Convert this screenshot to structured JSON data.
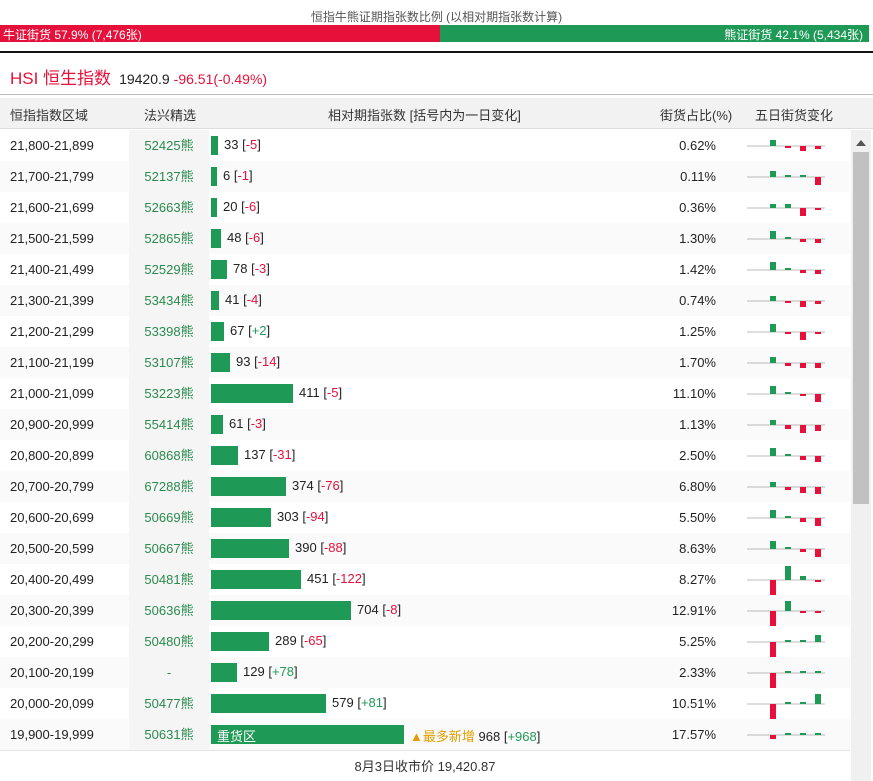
{
  "header": {
    "caption": "恒指牛熊证期指张数比例 (以相对期指张数计算)",
    "bull_label": "牛证街货 57.9% (7,476张)",
    "bear_label": "熊证街货 42.1% (5,434张)",
    "bull_ratio": 0.579,
    "bull_color": "#e5113a",
    "bear_color": "#1f9a56"
  },
  "index": {
    "name": "HSI 恒生指数",
    "price": "19420.9",
    "change": "-96.51(-0.49%)"
  },
  "columns": {
    "range": "恒指指数区域",
    "pick": "法兴精选",
    "contracts": "相对期指张数 [括号内为一日变化]",
    "share": "街货占比(%)",
    "trend": "五日街货变化"
  },
  "rows": [
    {
      "range": "21,800-21,899",
      "pick": "52425熊",
      "count": 33,
      "count_text": "33",
      "change_text": "-5",
      "change": -5,
      "pct": "0.62%",
      "trend": [
        6,
        -2,
        -5,
        -3,
        -1
      ]
    },
    {
      "range": "21,700-21,799",
      "pick": "52137熊",
      "count": 6,
      "count_text": "6",
      "change_text": "-1",
      "change": -1,
      "pct": "0.11%",
      "trend": [
        6,
        0,
        0,
        -8,
        0
      ]
    },
    {
      "range": "21,600-21,699",
      "pick": "52663熊",
      "count": 20,
      "count_text": "20",
      "change_text": "-6",
      "change": -6,
      "pct": "0.36%",
      "trend": [
        4,
        4,
        -8,
        -2,
        -1
      ]
    },
    {
      "range": "21,500-21,599",
      "pick": "52865熊",
      "count": 48,
      "count_text": "48",
      "change_text": "-6",
      "change": -6,
      "pct": "1.30%",
      "trend": [
        8,
        0,
        -3,
        -4,
        -2
      ]
    },
    {
      "range": "21,400-21,499",
      "pick": "52529熊",
      "count": 78,
      "count_text": "78",
      "change_text": "-3",
      "change": -3,
      "pct": "1.42%",
      "trend": [
        8,
        0,
        -3,
        -4,
        -2
      ]
    },
    {
      "range": "21,300-21,399",
      "pick": "53434熊",
      "count": 41,
      "count_text": "41",
      "change_text": "-4",
      "change": -4,
      "pct": "0.74%",
      "trend": [
        5,
        -1,
        -6,
        -3,
        -1
      ]
    },
    {
      "range": "21,200-21,299",
      "pick": "53398熊",
      "count": 67,
      "count_text": "67",
      "change_text": "+2",
      "change": 2,
      "pct": "1.25%",
      "trend": [
        8,
        -2,
        -8,
        -2,
        1
      ]
    },
    {
      "range": "21,100-21,199",
      "pick": "53107熊",
      "count": 93,
      "count_text": "93",
      "change_text": "-14",
      "change": -14,
      "pct": "1.70%",
      "trend": [
        6,
        -3,
        -5,
        -5,
        -3
      ]
    },
    {
      "range": "21,000-21,099",
      "pick": "53223熊",
      "count": 411,
      "count_text": "411",
      "change_text": "-5",
      "change": -5,
      "pct": "11.10%",
      "trend": [
        8,
        1,
        -1,
        -8,
        -1
      ]
    },
    {
      "range": "20,900-20,999",
      "pick": "55414熊",
      "count": 61,
      "count_text": "61",
      "change_text": "-3",
      "change": -3,
      "pct": "1.13%",
      "trend": [
        5,
        -4,
        -8,
        -6,
        -3
      ]
    },
    {
      "range": "20,800-20,899",
      "pick": "60868熊",
      "count": 137,
      "count_text": "137",
      "change_text": "-31",
      "change": -31,
      "pct": "2.50%",
      "trend": [
        8,
        1,
        -4,
        -6,
        -2
      ]
    },
    {
      "range": "20,700-20,799",
      "pick": "67288熊",
      "count": 374,
      "count_text": "374",
      "change_text": "-76",
      "change": -76,
      "pct": "6.80%",
      "trend": [
        5,
        -3,
        -6,
        -7,
        -5
      ]
    },
    {
      "range": "20,600-20,699",
      "pick": "50669熊",
      "count": 303,
      "count_text": "303",
      "change_text": "-94",
      "change": -94,
      "pct": "5.50%",
      "trend": [
        8,
        1,
        -4,
        -8,
        -3
      ]
    },
    {
      "range": "20,500-20,599",
      "pick": "50667熊",
      "count": 390,
      "count_text": "390",
      "change_text": "-88",
      "change": -88,
      "pct": "8.63%",
      "trend": [
        8,
        2,
        -3,
        -8,
        -1
      ]
    },
    {
      "range": "20,400-20,499",
      "pick": "50481熊",
      "count": 451,
      "count_text": "451",
      "change_text": "-122",
      "change": -122,
      "pct": "8.27%",
      "trend": [
        -16,
        14,
        4,
        -2,
        -13
      ]
    },
    {
      "range": "20,300-20,399",
      "pick": "50636熊",
      "count": 704,
      "count_text": "704",
      "change_text": "-8",
      "change": -8,
      "pct": "12.91%",
      "trend": [
        -16,
        10,
        -1,
        -1,
        -1
      ]
    },
    {
      "range": "20,200-20,299",
      "pick": "50480熊",
      "count": 289,
      "count_text": "289",
      "change_text": "-65",
      "change": -65,
      "pct": "5.25%",
      "trend": [
        -15,
        0,
        0,
        7,
        -1
      ]
    },
    {
      "range": "20,100-20,199",
      "pick": "-",
      "count": 129,
      "count_text": "129",
      "change_text": "+78",
      "change": 78,
      "pct": "2.33%",
      "trend": [
        -15,
        0,
        0,
        2,
        2
      ]
    },
    {
      "range": "20,000-20,099",
      "pick": "50477熊",
      "count": 579,
      "count_text": "579",
      "change_text": "+81",
      "change": 81,
      "pct": "10.51%",
      "trend": [
        -15,
        0,
        0,
        10,
        3
      ]
    },
    {
      "range": "19,900-19,999",
      "pick": "50631熊",
      "count": 968,
      "count_text": "968",
      "change_text": "+968",
      "change": 968,
      "pct": "17.57%",
      "heavy": "重货区",
      "hot": "▲最多新增",
      "trend": [
        -4,
        0,
        0,
        0,
        15
      ]
    }
  ],
  "footer": {
    "close_text": "8月3日收市价 19,420.87"
  }
}
